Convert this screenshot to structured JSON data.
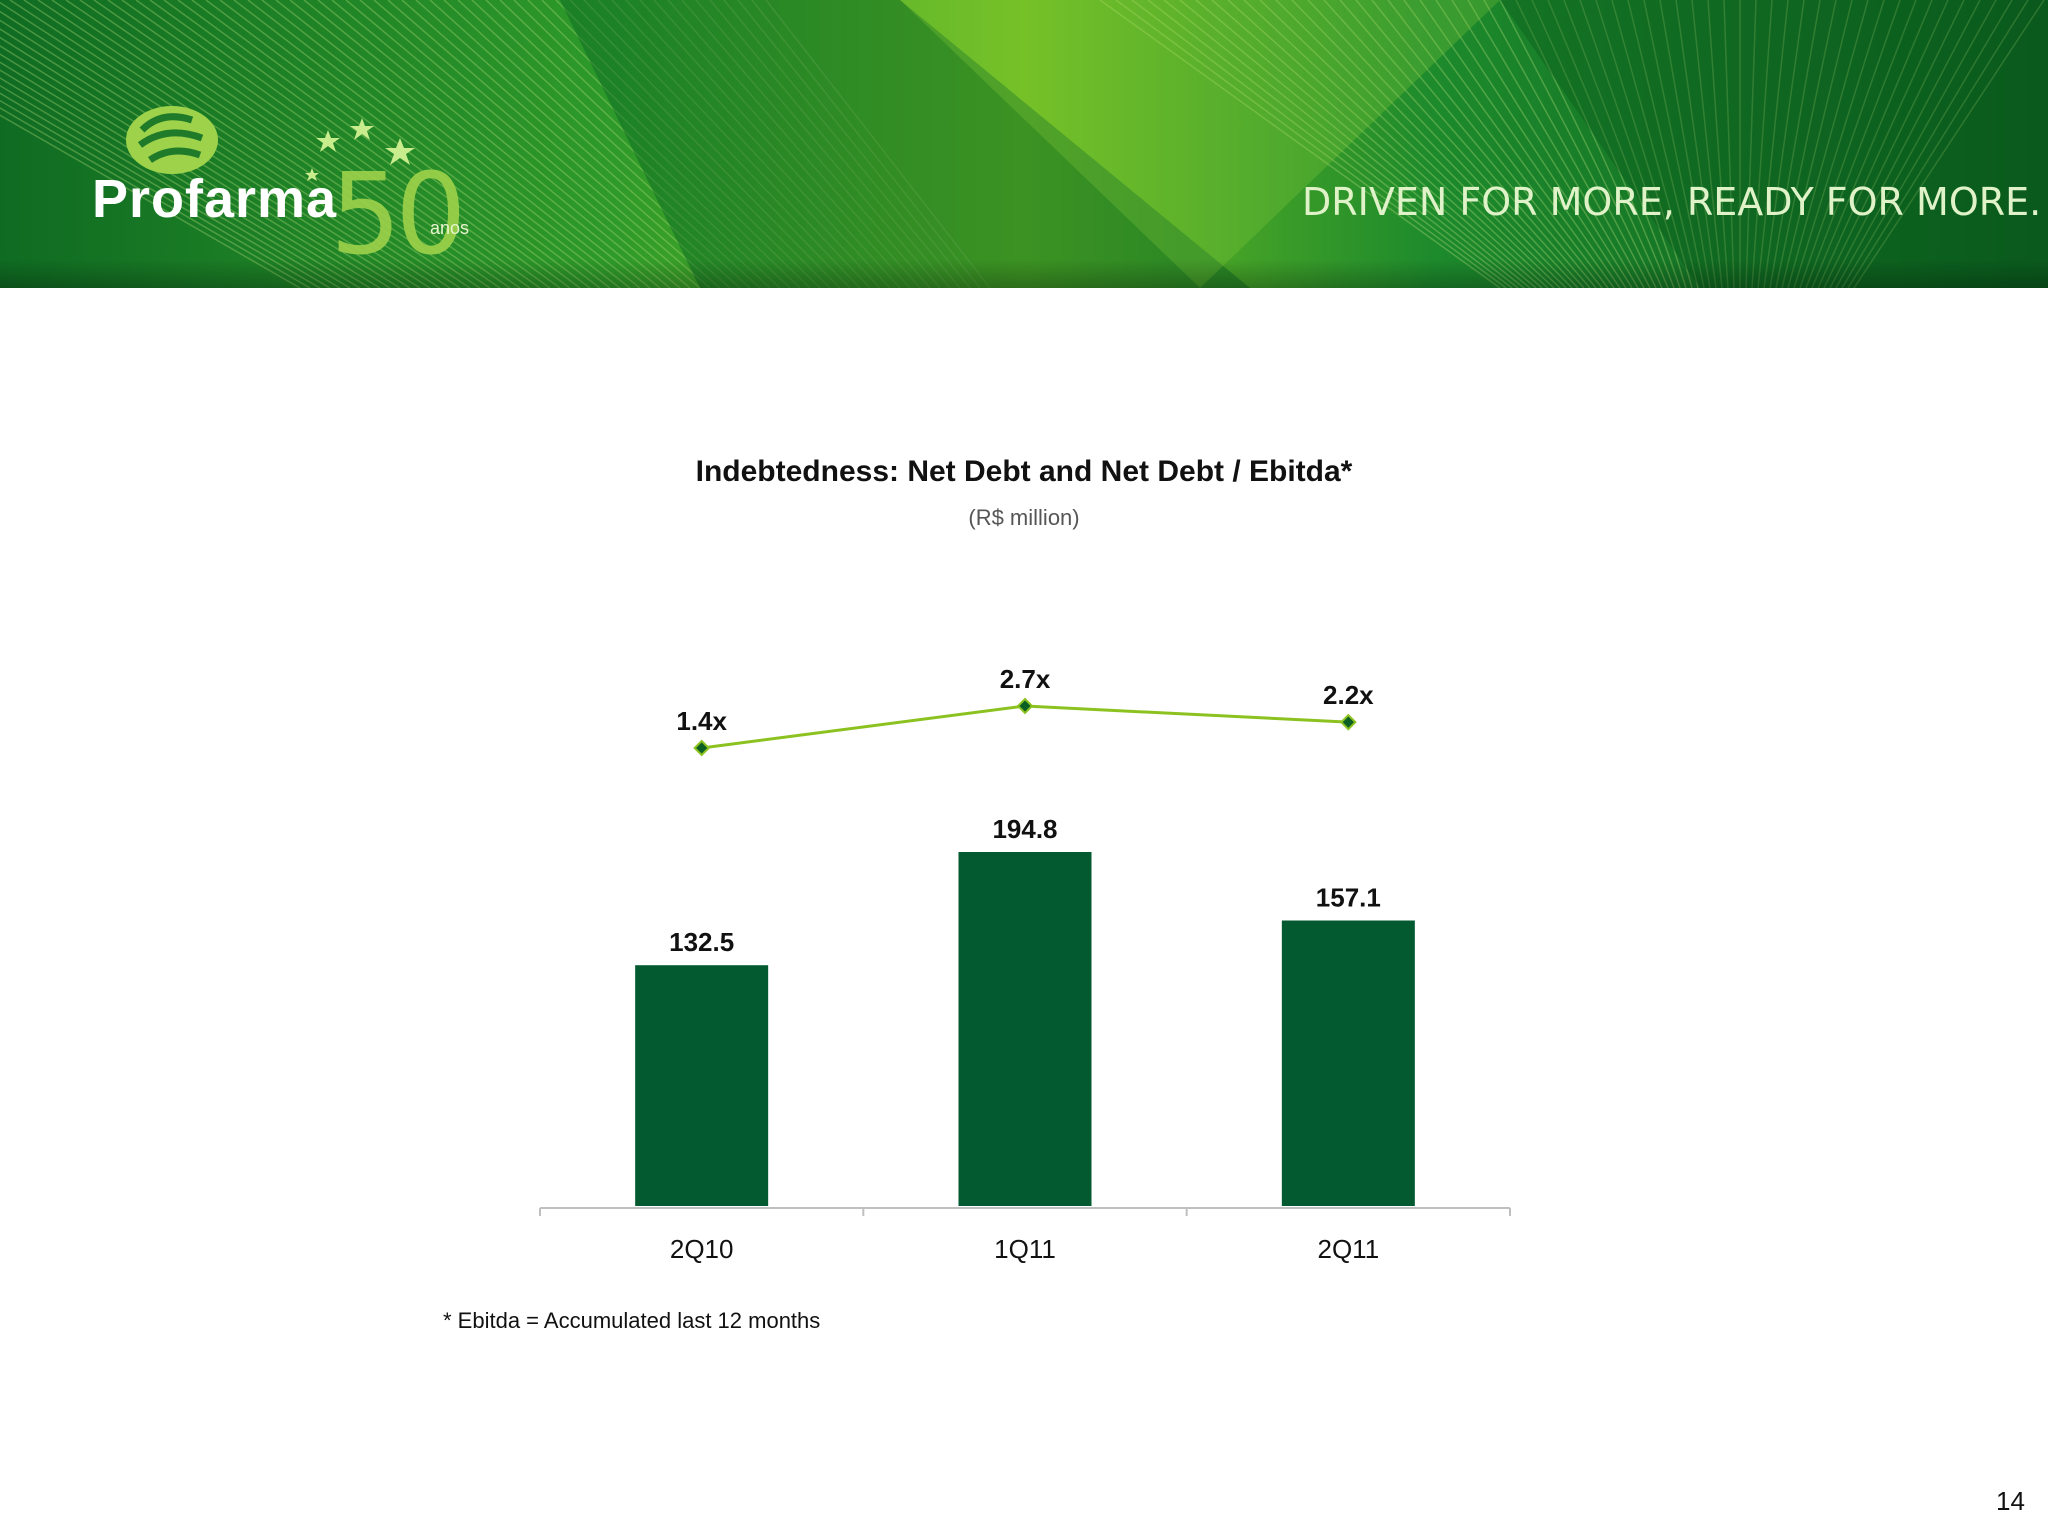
{
  "header": {
    "brand": "Profarma",
    "anniversary_number": "50",
    "anniversary_label": "anos",
    "tagline": "DRIVEN FOR MORE, READY FOR MORE."
  },
  "chart_data": {
    "type": "bar",
    "title": "Indebtedness: Net Debt and Net Debt / Ebitda*",
    "subtitle": "(R$ million)",
    "categories": [
      "2Q10",
      "1Q11",
      "2Q11"
    ],
    "series": [
      {
        "values": [
          132.5,
          194.8,
          157.1
        ],
        "labels": [
          "132.5",
          "194.8",
          "157.1"
        ],
        "type": "bar",
        "color": "#035a30"
      },
      {
        "values": [
          1.4,
          2.7,
          2.2
        ],
        "labels": [
          "1.4x",
          "2.7x",
          "2.2x"
        ],
        "type": "line",
        "color": "#8cc21f"
      }
    ],
    "grid": false,
    "legend": "none"
  },
  "footnote": "* Ebitda = Accumulated last 12 months",
  "page_number": "14",
  "colors": {
    "bar": "#035a30",
    "line": "#8cc21f",
    "marker": "#0b5e24",
    "banner_dark": "#0d5e1e",
    "banner_light": "#7ec421"
  }
}
